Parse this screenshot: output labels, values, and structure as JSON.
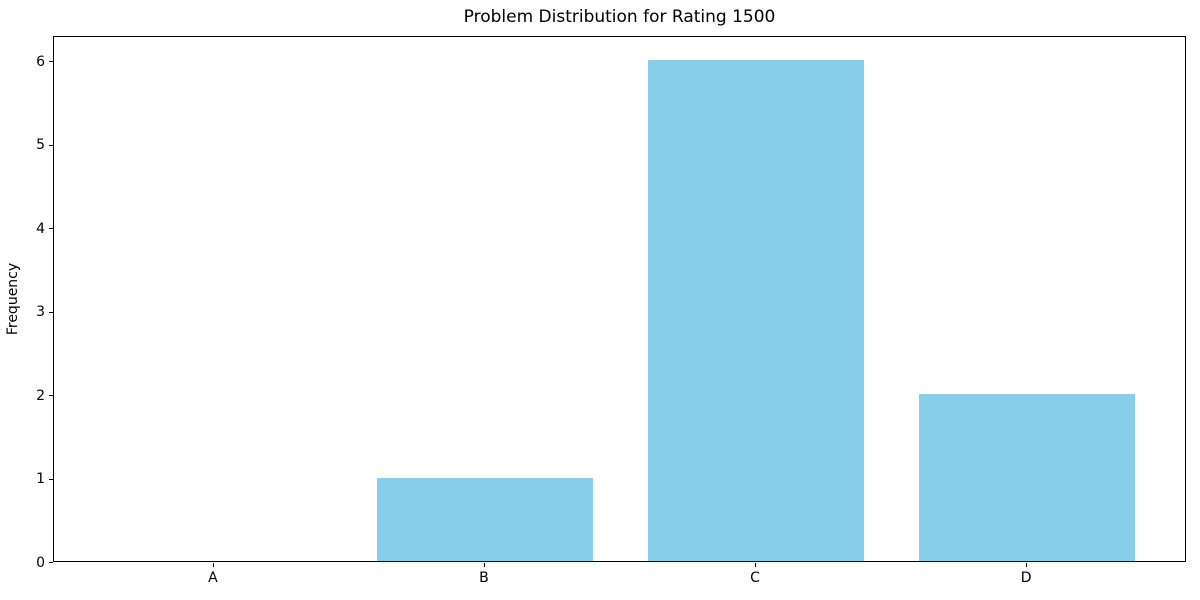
{
  "chart_data": {
    "type": "bar",
    "title": "Problem Distribution for Rating 1500",
    "xlabel": "",
    "ylabel": "Frequency",
    "categories": [
      "A",
      "B",
      "C",
      "D"
    ],
    "values": [
      0,
      1,
      6,
      2
    ],
    "bar_color": "#87ceeb",
    "bar_width": 0.8,
    "xlim": [
      -0.59,
      3.59
    ],
    "ylim": [
      0,
      6.3
    ],
    "yticks": [
      0,
      1,
      2,
      3,
      4,
      5,
      6
    ],
    "grid": false,
    "legend": null,
    "spine_color": "#000000",
    "background_color": "#ffffff"
  }
}
